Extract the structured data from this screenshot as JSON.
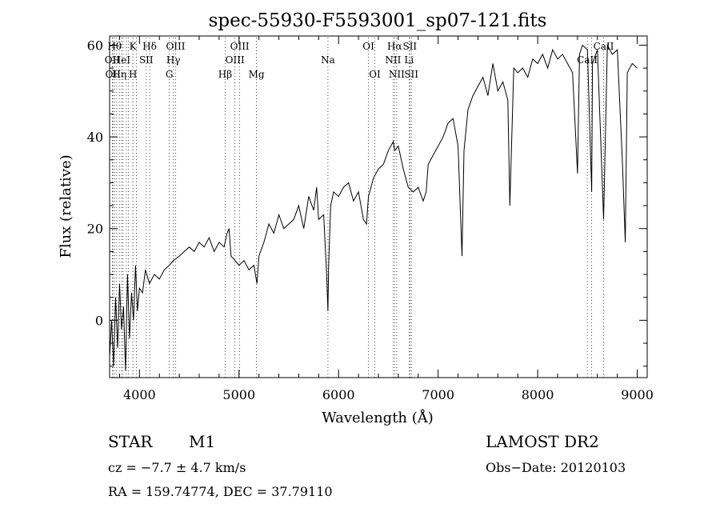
{
  "chart_data": {
    "type": "line",
    "title": "spec-55930-F5593001_sp07-121.fits",
    "xlabel": "Wavelength (Å)",
    "ylabel": "Flux (relative)",
    "xlim": [
      3700,
      9100
    ],
    "ylim": [
      -12.5,
      62
    ],
    "xticks": [
      4000,
      5000,
      6000,
      7000,
      8000,
      9000
    ],
    "yticks": [
      0,
      20,
      40,
      60
    ],
    "grid": false,
    "series": [
      {
        "x": [
          3700,
          3720,
          3740,
          3760,
          3780,
          3800,
          3820,
          3840,
          3860,
          3880,
          3900,
          3920,
          3940,
          3960,
          3980,
          4000,
          4030,
          4060,
          4100,
          4150,
          4200,
          4250,
          4300,
          4340,
          4400,
          4450,
          4500,
          4550,
          4600,
          4650,
          4700,
          4750,
          4800,
          4850,
          4880,
          4900,
          4920,
          4960,
          5000,
          5050,
          5100,
          5150,
          5180,
          5200,
          5250,
          5300,
          5350,
          5400,
          5450,
          5500,
          5550,
          5600,
          5650,
          5700,
          5750,
          5780,
          5800,
          5850,
          5880,
          5893,
          5900,
          5920,
          5950,
          6000,
          6050,
          6100,
          6150,
          6200,
          6250,
          6280,
          6300,
          6350,
          6400,
          6450,
          6500,
          6550,
          6563,
          6600,
          6650,
          6700,
          6750,
          6800,
          6850,
          6880,
          6900,
          6950,
          7000,
          7050,
          7100,
          7150,
          7200,
          7240,
          7260,
          7300,
          7350,
          7400,
          7450,
          7500,
          7550,
          7600,
          7650,
          7700,
          7720,
          7760,
          7800,
          7850,
          7900,
          7950,
          8000,
          8050,
          8100,
          8150,
          8200,
          8250,
          8300,
          8350,
          8400,
          8420,
          8450,
          8500,
          8542,
          8550,
          8600,
          8662,
          8700,
          8750,
          8800,
          8850,
          8880,
          8900,
          8950,
          9000
        ],
        "y": [
          -8,
          0,
          -10,
          5,
          -6,
          8,
          -2,
          3,
          -11,
          10,
          -4,
          6,
          0,
          12,
          2,
          7,
          6,
          11,
          8,
          10,
          9,
          11,
          12,
          13,
          14,
          15,
          16,
          15,
          17,
          16,
          18,
          15,
          17,
          16,
          19,
          20,
          14,
          13,
          12,
          13,
          11,
          12,
          8,
          14,
          17,
          21,
          19,
          23,
          20,
          21,
          22,
          25,
          20,
          27,
          24,
          29,
          22,
          23,
          10,
          2,
          12,
          25,
          28,
          27,
          29,
          30,
          26,
          28,
          22,
          21,
          27,
          31,
          33,
          34,
          37,
          39,
          37,
          38,
          33,
          29,
          28,
          29,
          26,
          28,
          34,
          36,
          38,
          40,
          43,
          44,
          38,
          14,
          37,
          46,
          49,
          51,
          53,
          49,
          56,
          50,
          52,
          48,
          25,
          55,
          54,
          55,
          53,
          57,
          56,
          58,
          55,
          59,
          57,
          58,
          56,
          54,
          32,
          58,
          60,
          59,
          28,
          56,
          59,
          22,
          60,
          58,
          59,
          35,
          17,
          54,
          56,
          55
        ]
      }
    ],
    "line_markers": [
      {
        "wave": 3727,
        "label": "OII",
        "row": 2
      },
      {
        "wave": 3734,
        "label": "OII",
        "row": 3
      },
      {
        "wave": 3750,
        "label": "Hθ",
        "row": 1
      },
      {
        "wave": 3771,
        "label": "",
        "row": 0
      },
      {
        "wave": 3798,
        "label": "Hη",
        "row": 3
      },
      {
        "wave": 3820,
        "label": "HeI",
        "row": 2
      },
      {
        "wave": 3835,
        "label": "",
        "row": 0
      },
      {
        "wave": 3869,
        "label": "",
        "row": 0
      },
      {
        "wave": 3889,
        "label": "",
        "row": 0
      },
      {
        "wave": 3934,
        "label": "K",
        "row": 1
      },
      {
        "wave": 3934,
        "label": "H",
        "row": 3
      },
      {
        "wave": 3970,
        "label": "",
        "row": 0
      },
      {
        "wave": 4068,
        "label": "SII",
        "row": 2
      },
      {
        "wave": 4102,
        "label": "Hδ",
        "row": 1
      },
      {
        "wave": 4300,
        "label": "G",
        "row": 3
      },
      {
        "wave": 4340,
        "label": "Hγ",
        "row": 2
      },
      {
        "wave": 4363,
        "label": "OIII",
        "row": 1
      },
      {
        "wave": 4861,
        "label": "Hβ",
        "row": 3
      },
      {
        "wave": 4959,
        "label": "OIII",
        "row": 2
      },
      {
        "wave": 5007,
        "label": "OIII",
        "row": 1
      },
      {
        "wave": 5175,
        "label": "Mg",
        "row": 3
      },
      {
        "wave": 5893,
        "label": "Na",
        "row": 2
      },
      {
        "wave": 6300,
        "label": "OI",
        "row": 1
      },
      {
        "wave": 6364,
        "label": "OI",
        "row": 3
      },
      {
        "wave": 6548,
        "label": "NII",
        "row": 2
      },
      {
        "wave": 6563,
        "label": "Hα",
        "row": 1
      },
      {
        "wave": 6584,
        "label": "NII",
        "row": 3
      },
      {
        "wave": 6708,
        "label": "Li",
        "row": 2
      },
      {
        "wave": 6716,
        "label": "SII",
        "row": 1
      },
      {
        "wave": 6731,
        "label": "SII",
        "row": 3
      },
      {
        "wave": 8498,
        "label": "CaII",
        "row": 2
      },
      {
        "wave": 8542,
        "label": "",
        "row": 0
      },
      {
        "wave": 8662,
        "label": "CaII",
        "row": 1
      }
    ]
  },
  "info": {
    "object_class": "STAR",
    "subclass": "M1",
    "redshift": "cz = −7.7 ± 4.7 km/s",
    "coords": "RA = 159.74774, DEC =  37.79110",
    "survey": "LAMOST DR2",
    "obs_date": "Obs−Date: 20120103"
  }
}
